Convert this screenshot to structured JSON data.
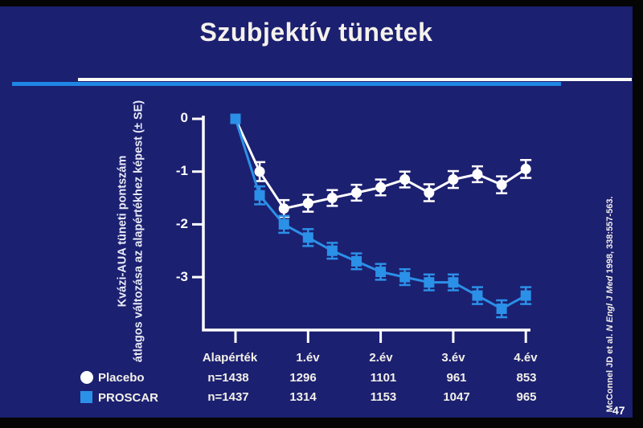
{
  "title": "Szubjektív tünetek",
  "slide_number": "47",
  "colors": {
    "slide_background": "#1c2070",
    "accent_blue": "#2b90e8",
    "divider_blue": "#1f86e4",
    "axis_white": "#ffffff"
  },
  "citation": {
    "prefix": "McConnel JD et al. ",
    "journal_italic": "N Engl J Med",
    "suffix": " 1998, 338:557-563."
  },
  "legend": [
    {
      "label": "Placebo",
      "marker": "circle",
      "color": "#ffffff"
    },
    {
      "label": "PROSCAR",
      "marker": "square",
      "color": "#2b90e8"
    }
  ],
  "chart_data": {
    "type": "line",
    "title": "",
    "ylabel_line1": "Kvázi-AUA tüneti pontszám",
    "ylabel_line2": "átlagos változása az alapértékhez képest (± SE)",
    "error_bar_note": "± SE",
    "y_ticks": [
      "0",
      "-1",
      "-2",
      "-3"
    ],
    "y_tick_values": [
      0,
      -1,
      -2,
      -3
    ],
    "ylim": [
      -3.9,
      0.2
    ],
    "x_tick_labels": [
      "Alapérték",
      "1.év",
      "2.év",
      "3.év",
      "4.év"
    ],
    "x_tick_years": [
      0,
      1,
      2,
      3,
      4
    ],
    "grid": false,
    "legend_position": "bottom-left",
    "series": [
      {
        "name": "Placebo",
        "marker": "circle",
        "color": "#ffffff",
        "x_years": [
          0,
          0.333,
          0.667,
          1,
          1.333,
          1.667,
          2,
          2.333,
          2.667,
          3,
          3.333,
          3.667,
          4
        ],
        "values": [
          0,
          -1.0,
          -1.7,
          -1.6,
          -1.5,
          -1.4,
          -1.3,
          -1.15,
          -1.4,
          -1.15,
          -1.05,
          -1.25,
          -0.95
        ],
        "se": [
          0,
          0.18,
          0.16,
          0.16,
          0.15,
          0.15,
          0.15,
          0.15,
          0.16,
          0.16,
          0.15,
          0.16,
          0.17
        ]
      },
      {
        "name": "PROSCAR",
        "marker": "square",
        "color": "#2b90e8",
        "x_years": [
          0,
          0.333,
          0.667,
          1,
          1.333,
          1.667,
          2,
          2.333,
          2.667,
          3,
          3.333,
          3.667,
          4
        ],
        "values": [
          0,
          -1.45,
          -2.0,
          -2.25,
          -2.5,
          -2.7,
          -2.9,
          -3.0,
          -3.1,
          -3.1,
          -3.35,
          -3.6,
          -3.35
        ],
        "se": [
          0,
          0.17,
          0.16,
          0.16,
          0.15,
          0.15,
          0.15,
          0.15,
          0.15,
          0.15,
          0.16,
          0.16,
          0.16
        ]
      }
    ]
  },
  "n_table": {
    "placebo_row": [
      "n=1438",
      "1296",
      "1101",
      "961",
      "853"
    ],
    "proscar_row": [
      "n=1437",
      "1314",
      "1153",
      "1047",
      "965"
    ]
  }
}
